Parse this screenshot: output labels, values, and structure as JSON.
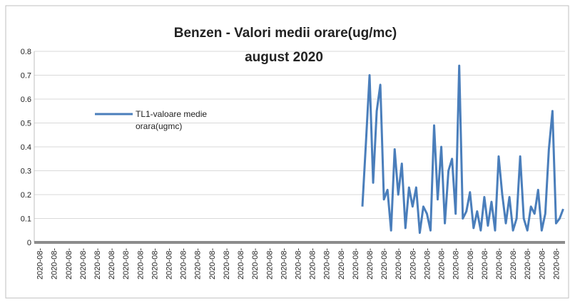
{
  "chart_data": {
    "type": "line",
    "title": "Benzen - Valori medii orare(ug/mc)",
    "subtitle": "august 2020",
    "categories": [
      null,
      "2020-08-",
      null,
      null,
      null,
      "2020-08-",
      null,
      null,
      null,
      "2020-08-",
      null,
      null,
      null,
      "2020-08-",
      null,
      null,
      null,
      "2020-08-",
      null,
      null,
      null,
      "2020-08-",
      null,
      null,
      null,
      "2020-08-",
      null,
      null,
      null,
      "2020-08-",
      null,
      null,
      null,
      "2020-08-",
      null,
      null,
      null,
      "2020-08-",
      null,
      null,
      null,
      "2020-08-",
      null,
      null,
      null,
      "2020-08-",
      null,
      null,
      null,
      "2020-08-",
      null,
      null,
      null,
      "2020-08-",
      null,
      null,
      null,
      "2020-08-",
      null,
      null,
      null,
      "2020-08-",
      null,
      null,
      null,
      "2020-08-",
      null,
      null,
      null,
      "2020-08-",
      null,
      null,
      null,
      "2020-08-",
      null,
      null,
      null,
      "2020-08-",
      null,
      null,
      null,
      "2020-08-",
      null,
      null,
      null,
      "2020-08-",
      null,
      null,
      null,
      "2020-08-",
      null,
      null,
      null,
      "2020-08-",
      null,
      null,
      null,
      "2020-08-",
      null,
      null,
      null,
      "2020-08-",
      null,
      null,
      null,
      "2020-08-",
      null,
      null,
      null,
      "2020-08-",
      null,
      null,
      null,
      "2020-08-",
      null,
      null,
      null,
      "2020-08-",
      null,
      null,
      null,
      "2020-08-",
      null,
      null,
      null,
      "2020-08-",
      null,
      null,
      null,
      "2020-08-",
      null,
      null,
      null,
      "2020-08-",
      null,
      null,
      null,
      "2020-08-",
      null,
      null,
      null,
      "2020-08-",
      null,
      null,
      null,
      "2020-08-",
      null,
      null
    ],
    "series": [
      {
        "name": "TL1-valoare medie orara(ugmc)",
        "color": "#4a7ebb",
        "values": [
          null,
          null,
          null,
          null,
          null,
          null,
          null,
          null,
          null,
          null,
          null,
          null,
          null,
          null,
          null,
          null,
          null,
          null,
          null,
          null,
          null,
          null,
          null,
          null,
          null,
          null,
          null,
          null,
          null,
          null,
          null,
          null,
          null,
          null,
          null,
          null,
          null,
          null,
          null,
          null,
          null,
          null,
          null,
          null,
          null,
          null,
          null,
          null,
          null,
          null,
          null,
          null,
          null,
          null,
          null,
          null,
          null,
          null,
          null,
          null,
          null,
          null,
          null,
          null,
          null,
          null,
          null,
          null,
          null,
          null,
          null,
          null,
          null,
          null,
          null,
          null,
          null,
          null,
          null,
          null,
          null,
          null,
          null,
          null,
          null,
          null,
          null,
          null,
          null,
          null,
          null,
          0.15,
          0.42,
          0.7,
          0.25,
          0.55,
          0.66,
          0.18,
          0.22,
          0.05,
          0.39,
          0.2,
          0.33,
          0.06,
          0.23,
          0.15,
          0.23,
          0.04,
          0.15,
          0.12,
          0.05,
          0.49,
          0.18,
          0.4,
          0.08,
          0.3,
          0.35,
          0.12,
          0.74,
          0.1,
          0.13,
          0.21,
          0.06,
          0.13,
          0.05,
          0.19,
          0.07,
          0.17,
          0.05,
          0.36,
          0.2,
          0.08,
          0.19,
          0.05,
          0.1,
          0.36,
          0.1,
          0.05,
          0.15,
          0.12,
          0.22,
          0.05,
          0.12,
          0.39,
          0.55,
          0.08,
          0.1,
          0.14
        ]
      }
    ],
    "ylim": [
      0,
      0.8
    ],
    "yticks": [
      0,
      0.1,
      0.2,
      0.3,
      0.4,
      0.5,
      0.6,
      0.7,
      0.8
    ],
    "grid": true
  }
}
